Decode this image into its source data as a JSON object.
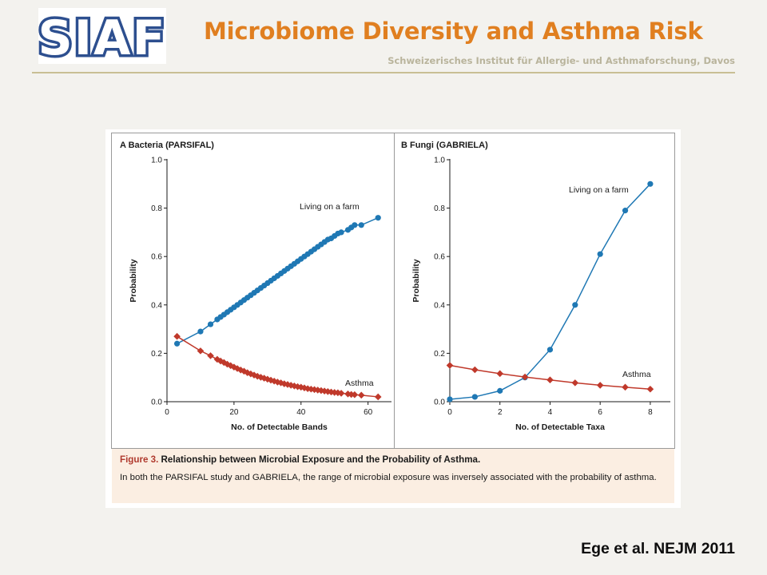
{
  "header": {
    "logo_text": "SIAF",
    "title": "Microbiome Diversity and Asthma Risk",
    "subtitle": "Schweizerisches Institut für Allergie- und Asthmaforschung, Davos"
  },
  "colors": {
    "title": "#e07f20",
    "subtitle": "#b9b49c",
    "logo": "#2d4f8f",
    "farm_series": "#1f78b4",
    "asthma_series": "#c0392b",
    "caption_bg": "#fbeee2",
    "figure_label": "#b03a2e"
  },
  "chart_data": [
    {
      "panel": "A",
      "type": "line",
      "title": "A  Bacteria (PARSIFAL)",
      "xlabel": "No. of Detectable Bands",
      "ylabel": "Probability",
      "xlim": [
        0,
        67
      ],
      "ylim": [
        0,
        1.0
      ],
      "xticks": [
        "0",
        "20",
        "40",
        "60"
      ],
      "xtick_values": [
        0,
        20,
        40,
        60
      ],
      "yticks": [
        "0.0",
        "0.2",
        "0.4",
        "0.6",
        "0.8",
        "1.0"
      ],
      "ytick_values": [
        0,
        0.2,
        0.4,
        0.6,
        0.8,
        1.0
      ],
      "grid": false,
      "series": [
        {
          "name": "Living on a farm",
          "marker": "circle",
          "color": "#1f78b4",
          "x": [
            3,
            10,
            13,
            15,
            16,
            17,
            18,
            19,
            20,
            21,
            22,
            23,
            24,
            25,
            26,
            27,
            28,
            29,
            30,
            31,
            32,
            33,
            34,
            35,
            36,
            37,
            38,
            39,
            40,
            41,
            42,
            43,
            44,
            45,
            46,
            47,
            48,
            49,
            50,
            51,
            52,
            54,
            55,
            56,
            58,
            63
          ],
          "y": [
            0.24,
            0.29,
            0.32,
            0.34,
            0.35,
            0.36,
            0.37,
            0.38,
            0.39,
            0.4,
            0.41,
            0.42,
            0.43,
            0.44,
            0.45,
            0.46,
            0.47,
            0.48,
            0.49,
            0.5,
            0.51,
            0.52,
            0.53,
            0.54,
            0.55,
            0.56,
            0.57,
            0.58,
            0.59,
            0.6,
            0.61,
            0.62,
            0.63,
            0.64,
            0.65,
            0.66,
            0.67,
            0.675,
            0.685,
            0.695,
            0.7,
            0.71,
            0.72,
            0.73,
            0.73,
            0.76
          ]
        },
        {
          "name": "Asthma",
          "marker": "diamond",
          "color": "#c0392b",
          "x": [
            3,
            10,
            13,
            15,
            16,
            17,
            18,
            19,
            20,
            21,
            22,
            23,
            24,
            25,
            26,
            27,
            28,
            29,
            30,
            31,
            32,
            33,
            34,
            35,
            36,
            37,
            38,
            39,
            40,
            41,
            42,
            43,
            44,
            45,
            46,
            47,
            48,
            49,
            50,
            51,
            52,
            54,
            55,
            56,
            58,
            63
          ],
          "y": [
            0.27,
            0.21,
            0.19,
            0.175,
            0.168,
            0.162,
            0.155,
            0.149,
            0.143,
            0.137,
            0.131,
            0.126,
            0.12,
            0.115,
            0.11,
            0.105,
            0.101,
            0.097,
            0.093,
            0.089,
            0.085,
            0.081,
            0.078,
            0.074,
            0.071,
            0.068,
            0.065,
            0.062,
            0.06,
            0.057,
            0.054,
            0.052,
            0.05,
            0.048,
            0.046,
            0.044,
            0.042,
            0.04,
            0.038,
            0.037,
            0.035,
            0.032,
            0.03,
            0.029,
            0.027,
            0.02
          ]
        }
      ]
    },
    {
      "panel": "B",
      "type": "line",
      "title": "B  Fungi (GABRIELA)",
      "xlabel": "No. of Detectable Taxa",
      "ylabel": "Probability",
      "xlim": [
        0,
        8.8
      ],
      "ylim": [
        0,
        1.0
      ],
      "xticks": [
        "0",
        "2",
        "4",
        "6",
        "8"
      ],
      "xtick_values": [
        0,
        2,
        4,
        6,
        8
      ],
      "yticks": [
        "0.0",
        "0.2",
        "0.4",
        "0.6",
        "0.8",
        "1.0"
      ],
      "ytick_values": [
        0,
        0.2,
        0.4,
        0.6,
        0.8,
        1.0
      ],
      "grid": false,
      "series": [
        {
          "name": "Living on a farm",
          "marker": "circle",
          "color": "#1f78b4",
          "x": [
            0,
            1,
            2,
            3,
            4,
            5,
            6,
            7,
            8
          ],
          "y": [
            0.01,
            0.02,
            0.045,
            0.1,
            0.215,
            0.4,
            0.61,
            0.79,
            0.9
          ]
        },
        {
          "name": "Asthma",
          "marker": "diamond",
          "color": "#c0392b",
          "x": [
            0,
            1,
            2,
            3,
            4,
            5,
            6,
            7,
            8
          ],
          "y": [
            0.15,
            0.132,
            0.116,
            0.102,
            0.09,
            0.078,
            0.068,
            0.06,
            0.052
          ]
        }
      ]
    }
  ],
  "caption": {
    "figure_label": "Figure 3.",
    "title_rest": " Relationship between Microbial Exposure and the Probability of Asthma.",
    "body": "In both the PARSIFAL study and GABRIELA, the range of microbial exposure was inversely associated with the probability of asthma."
  },
  "citation": "Ege et al. NEJM 2011"
}
